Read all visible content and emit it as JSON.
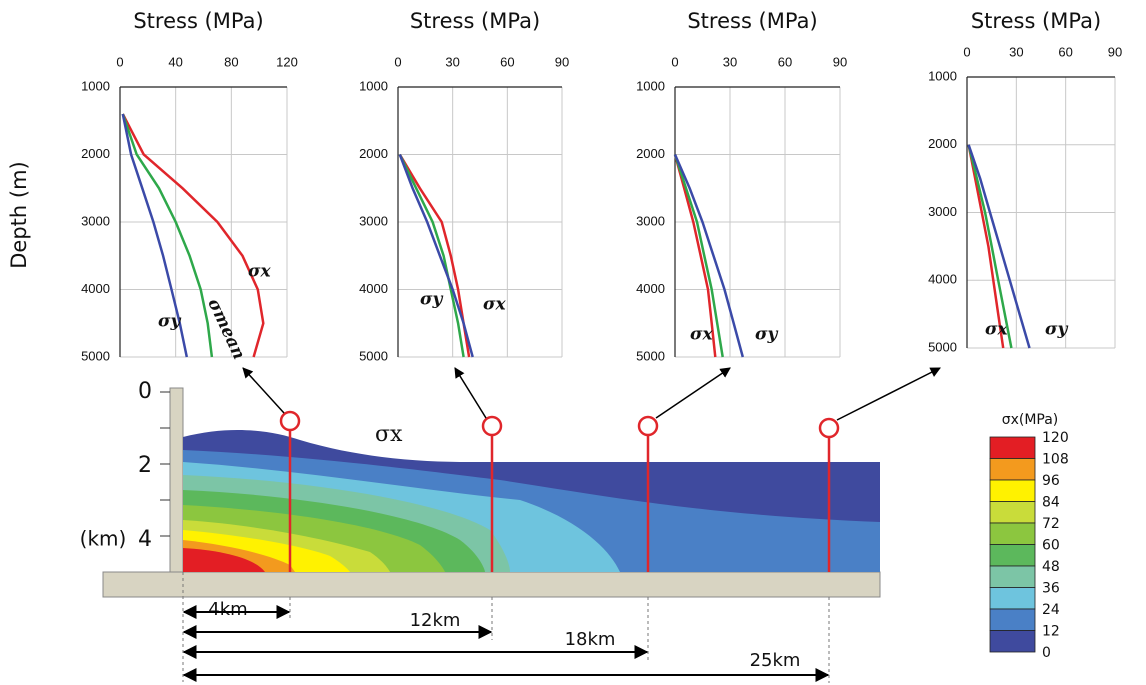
{
  "chart_data": [
    {
      "type": "line",
      "xlabel": "Stress (MPa)",
      "ylabel": "Depth (m)",
      "xlim": [
        0,
        120
      ],
      "xticks": [
        0,
        40,
        80,
        120
      ],
      "ylim": [
        1000,
        5000
      ],
      "yticks": [
        1000,
        2000,
        3000,
        4000,
        5000
      ],
      "y_inverted": true,
      "grid": true,
      "series": [
        {
          "name": "σx",
          "color": "#e0262b",
          "y": [
            1400,
            2000,
            2500,
            3000,
            3500,
            4000,
            4500,
            5000
          ],
          "x": [
            2,
            17,
            45,
            70,
            88,
            99,
            103,
            96
          ]
        },
        {
          "name": "σmean",
          "color": "#2ea84a",
          "y": [
            1400,
            2000,
            2500,
            3000,
            3500,
            4000,
            4500,
            5000
          ],
          "x": [
            2,
            12,
            28,
            40,
            50,
            58,
            63,
            66
          ]
        },
        {
          "name": "σy",
          "color": "#3b4aa8",
          "y": [
            1400,
            2000,
            2500,
            3000,
            3500,
            4000,
            4500,
            5000
          ],
          "x": [
            2,
            8,
            16,
            24,
            31,
            37,
            43,
            48
          ]
        }
      ]
    },
    {
      "type": "line",
      "xlabel": "Stress (MPa)",
      "xlim": [
        0,
        90
      ],
      "xticks": [
        0,
        30,
        60,
        90
      ],
      "ylim": [
        1000,
        5000
      ],
      "yticks": [
        1000,
        2000,
        3000,
        4000,
        5000
      ],
      "y_inverted": true,
      "grid": true,
      "series": [
        {
          "name": "σx",
          "color": "#e0262b",
          "y": [
            2000,
            2500,
            3000,
            3500,
            4000,
            4500,
            5000
          ],
          "x": [
            1,
            12,
            24,
            29,
            33,
            36,
            39
          ]
        },
        {
          "color": "#2ea84a",
          "y": [
            2000,
            2500,
            3000,
            3500,
            4000,
            4500,
            5000
          ],
          "x": [
            1,
            10,
            19,
            25,
            29,
            33,
            36
          ]
        },
        {
          "name": "σy",
          "color": "#3b4aa8",
          "y": [
            2000,
            2500,
            3000,
            3500,
            4000,
            4500,
            5000
          ],
          "x": [
            1,
            8,
            16,
            23,
            30,
            36,
            41
          ]
        }
      ]
    },
    {
      "type": "line",
      "xlabel": "Stress (MPa)",
      "xlim": [
        0,
        90
      ],
      "xticks": [
        0,
        30,
        60,
        90
      ],
      "ylim": [
        1000,
        5000
      ],
      "yticks": [
        1000,
        2000,
        3000,
        4000,
        5000
      ],
      "y_inverted": true,
      "grid": true,
      "series": [
        {
          "name": "σx",
          "color": "#e0262b",
          "y": [
            2000,
            2500,
            3000,
            3500,
            4000,
            4500,
            5000
          ],
          "x": [
            0,
            5,
            10,
            14,
            18,
            20,
            22
          ]
        },
        {
          "color": "#2ea84a",
          "y": [
            2000,
            2500,
            3000,
            3500,
            4000,
            4500,
            5000
          ],
          "x": [
            0,
            6,
            12,
            16,
            20,
            23,
            26
          ]
        },
        {
          "name": "σy",
          "color": "#3b4aa8",
          "y": [
            2000,
            2500,
            3000,
            3500,
            4000,
            4500,
            5000
          ],
          "x": [
            0,
            8,
            15,
            21,
            27,
            32,
            37
          ]
        }
      ]
    },
    {
      "type": "line",
      "xlabel": "Stress (MPa)",
      "xlim": [
        0,
        90
      ],
      "xticks": [
        0,
        30,
        60,
        90
      ],
      "ylim": [
        1000,
        5000
      ],
      "yticks": [
        1000,
        2000,
        3000,
        4000,
        5000
      ],
      "y_inverted": true,
      "grid": true,
      "series": [
        {
          "name": "σx",
          "color": "#e0262b",
          "y": [
            2000,
            2500,
            3000,
            3500,
            4000,
            4500,
            5000
          ],
          "x": [
            1,
            5,
            9,
            13,
            16,
            19,
            22
          ]
        },
        {
          "color": "#2ea84a",
          "y": [
            2000,
            2500,
            3000,
            3500,
            4000,
            4500,
            5000
          ],
          "x": [
            1,
            6,
            11,
            15,
            19,
            23,
            27
          ]
        },
        {
          "name": "σy",
          "color": "#3b4aa8",
          "y": [
            2000,
            2500,
            3000,
            3500,
            4000,
            4500,
            5000
          ],
          "x": [
            1,
            8,
            14,
            20,
            26,
            32,
            38
          ]
        }
      ]
    }
  ],
  "section": {
    "label": "σx",
    "depth_labels": [
      "0",
      "2",
      "4"
    ],
    "depth_unit": "(km)",
    "distances": [
      "4km",
      "12km",
      "18km",
      "25km"
    ]
  },
  "colorbar": {
    "title": "σx(MPa)",
    "labels": [
      "120",
      "108",
      "96",
      "84",
      "72",
      "60",
      "48",
      "36",
      "24",
      "12",
      "0"
    ],
    "colors": [
      "#e31e24",
      "#f39a1e",
      "#fff200",
      "#c9dc3a",
      "#8cc63f",
      "#5cb85c",
      "#7cc5a6",
      "#6ec4de",
      "#4a80c6",
      "#3f4a9e"
    ]
  }
}
